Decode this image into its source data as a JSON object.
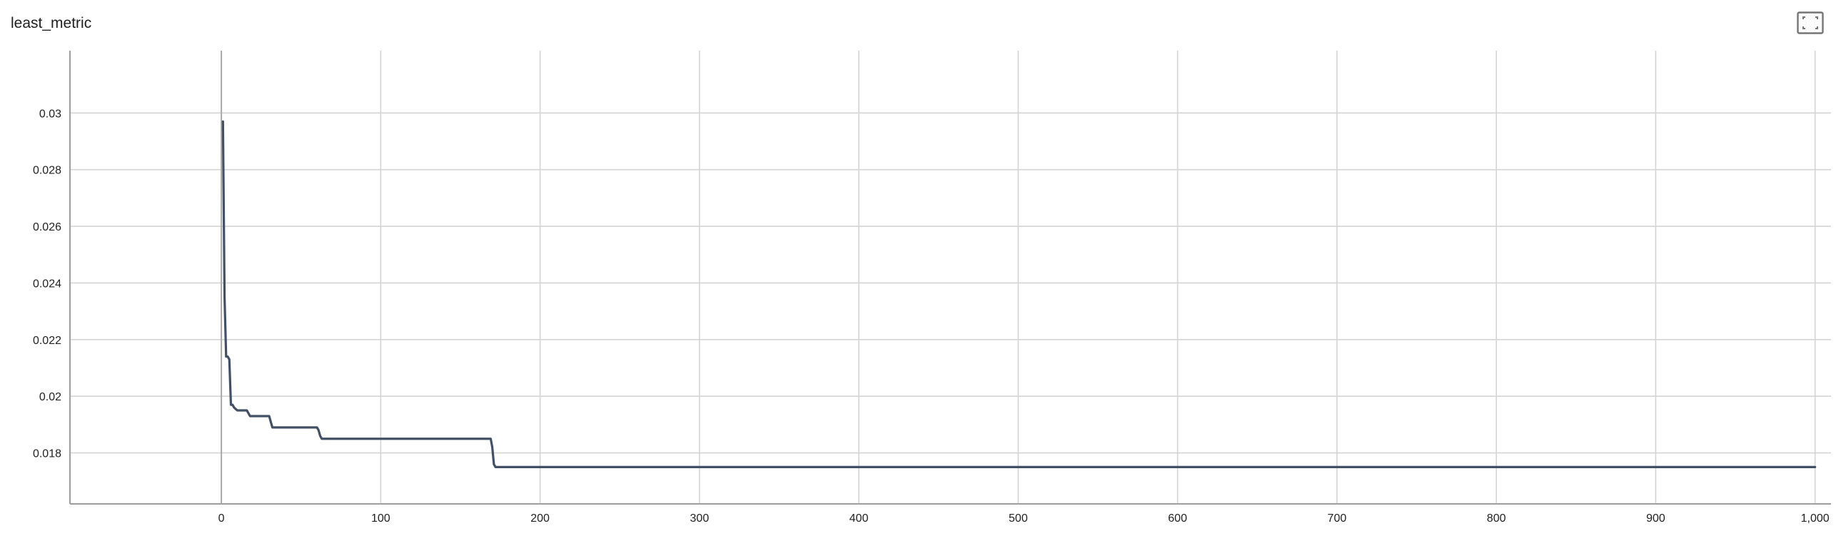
{
  "card": {
    "title": "least_metric",
    "expand_icon": "fullscreen-icon"
  },
  "chart_data": {
    "type": "line",
    "title": "least_metric",
    "xlabel": "",
    "ylabel": "",
    "xlim": [
      -95,
      1010
    ],
    "ylim": [
      0.0162,
      0.0322
    ],
    "x_ticks": [
      0,
      100,
      200,
      300,
      400,
      500,
      600,
      700,
      800,
      900,
      1000
    ],
    "x_tick_labels": [
      "0",
      "100",
      "200",
      "300",
      "400",
      "500",
      "600",
      "700",
      "800",
      "900",
      "1,000"
    ],
    "y_ticks": [
      0.018,
      0.02,
      0.022,
      0.024,
      0.026,
      0.028,
      0.03
    ],
    "y_tick_labels": [
      "0.018",
      "0.02",
      "0.022",
      "0.024",
      "0.026",
      "0.028",
      "0.03"
    ],
    "grid": true,
    "line_color": "#425066",
    "series": [
      {
        "x": [
          1,
          2,
          3,
          4,
          5,
          6,
          7,
          8,
          10,
          12,
          14,
          16,
          18,
          20,
          25,
          30,
          31,
          32,
          40,
          50,
          60,
          61,
          62,
          63,
          80,
          100,
          120,
          150,
          169,
          170,
          171,
          172,
          200,
          300,
          400,
          500,
          600,
          700,
          800,
          900,
          1000
        ],
        "y": [
          0.0297,
          0.0235,
          0.0214,
          0.0214,
          0.0213,
          0.0197,
          0.0197,
          0.0196,
          0.0195,
          0.0195,
          0.0195,
          0.0195,
          0.0193,
          0.0193,
          0.0193,
          0.0193,
          0.0191,
          0.0189,
          0.0189,
          0.0189,
          0.0189,
          0.0188,
          0.0186,
          0.0185,
          0.0185,
          0.0185,
          0.0185,
          0.0185,
          0.0185,
          0.0182,
          0.0176,
          0.0175,
          0.0175,
          0.0175,
          0.0175,
          0.0175,
          0.0175,
          0.0175,
          0.0175,
          0.0175,
          0.0175
        ]
      }
    ]
  }
}
